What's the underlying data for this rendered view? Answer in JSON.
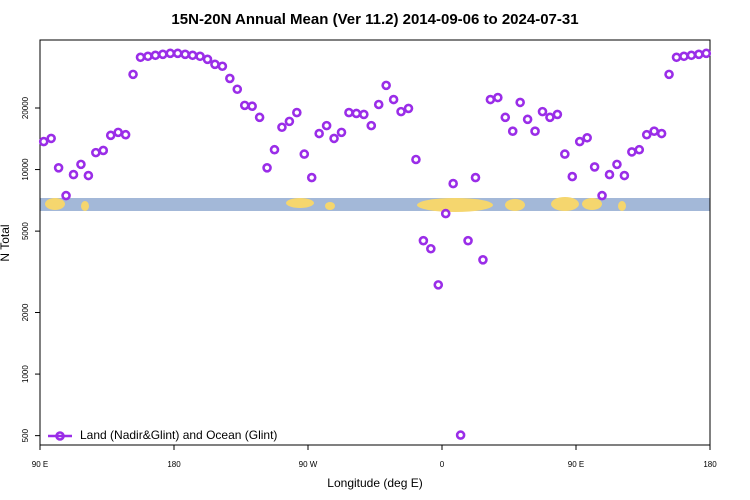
{
  "chart_data": {
    "type": "scatter",
    "title": "15N-20N Annual Mean (Ver 11.2)   2014-09-06 to 2024-07-31",
    "x_label": "Longitude (deg E)",
    "y_label": "N Total",
    "xlim": [
      90,
      540
    ],
    "xticks": [
      {
        "value": 90,
        "label": "90 E"
      },
      180,
      {
        "value": 270,
        "label": "90 W"
      },
      {
        "value": 360,
        "label": "0"
      },
      {
        "value": 450,
        "label": "90 E"
      },
      {
        "value": 540,
        "label": "180"
      }
    ],
    "ylim": [
      450,
      43000
    ],
    "log_y": true,
    "yticks": [
      500,
      1000,
      2000,
      5000,
      10000,
      20000
    ],
    "legend": "lower left",
    "x": [
      92.5,
      97.5,
      102.5,
      107.5,
      112.5,
      117.5,
      122.5,
      127.5,
      132.5,
      137.5,
      142.5,
      147.5,
      152.5,
      157.5,
      162.5,
      167.5,
      172.5,
      177.5,
      182.5,
      187.5,
      192.5,
      197.5,
      202.5,
      207.5,
      212.5,
      217.5,
      222.5,
      227.5,
      232.5,
      237.5,
      242.5,
      247.5,
      252.5,
      257.5,
      262.5,
      267.5,
      272.5,
      277.5,
      282.5,
      287.5,
      292.5,
      297.5,
      302.5,
      307.5,
      312.5,
      317.5,
      322.5,
      327.5,
      332.5,
      337.5,
      342.5,
      347.5,
      352.5,
      357.5,
      362.5,
      367.5,
      372.5,
      377.5,
      382.5,
      387.5,
      392.5,
      397.5,
      402.5,
      407.5,
      412.5,
      417.5,
      422.5,
      427.5,
      432.5,
      437.5,
      442.5,
      447.5,
      452.5,
      457.5,
      462.5,
      467.5,
      472.5,
      477.5,
      482.5,
      487.5,
      492.5,
      497.5,
      502.5,
      507.5,
      512.5,
      517.5,
      522.5,
      527.5,
      532.5,
      537.5
    ],
    "series": [
      {
        "name": "Land (Nadir&Glint) and Ocean (Glint)",
        "color": "#9a2de8",
        "values": [
          13700,
          14200,
          10200,
          7460,
          9450,
          10600,
          9350,
          12100,
          12400,
          14700,
          15200,
          14800,
          29200,
          35400,
          35800,
          36200,
          36600,
          37000,
          37000,
          36600,
          36200,
          35800,
          34600,
          32700,
          32000,
          27900,
          24700,
          20600,
          20400,
          18000,
          10200,
          12500,
          16100,
          17200,
          19000,
          11900,
          9140,
          15000,
          16400,
          14200,
          15200,
          19000,
          18800,
          18600,
          16400,
          20800,
          25800,
          22000,
          19200,
          19900,
          11200,
          4490,
          4100,
          2730,
          6090,
          8540,
          503,
          4490,
          9140,
          3620,
          22000,
          22500,
          18000,
          15400,
          21300,
          17600,
          15400,
          19200,
          18000,
          18600,
          11900,
          9240,
          13700,
          14300,
          10300,
          7460,
          9450,
          10600,
          9350,
          12200,
          12500,
          14800,
          15400,
          15000,
          29200,
          35400,
          35800,
          36200,
          36600,
          37000
        ]
      }
    ]
  }
}
